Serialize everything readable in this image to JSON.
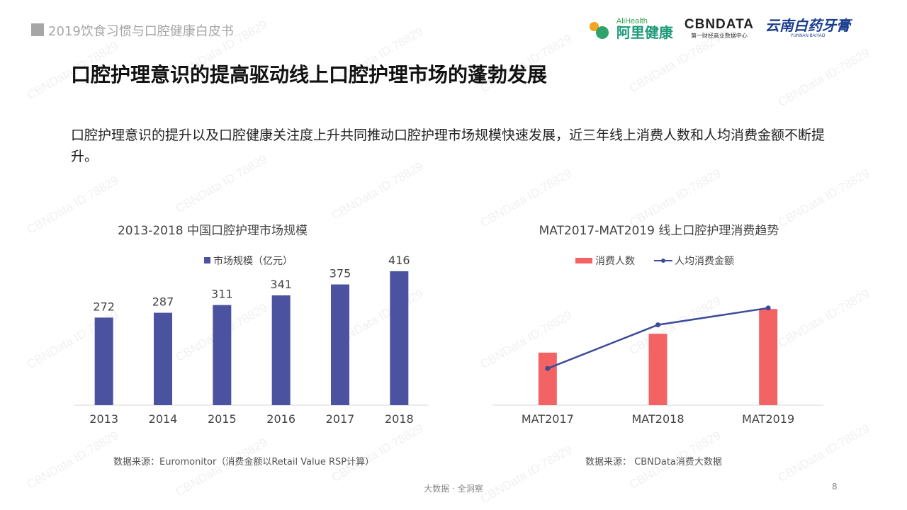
{
  "header": {
    "report_title": "2019饮食习惯与口腔健康白皮书"
  },
  "logos": {
    "alihealth_en": "AliHealth",
    "alihealth_cn": "阿里健康",
    "cbndata_en": "CBNDATA",
    "cbndata_cn": "第一财经商业数据中心",
    "yunnan_cn": "云南白药牙膏",
    "yunnan_en": "YUNNAN BAIYAO"
  },
  "main_title": "口腔护理意识的提高驱动线上口腔护理市场的蓬勃发展",
  "description": "口腔护理意识的提升以及口腔健康关注度上升共同推动口腔护理市场规模快速发展，近三年线上消费人数和人均消费金额不断提升。",
  "watermark_text": "CBNData ID:78829",
  "colors": {
    "bar_left": "#4b52a0",
    "bar_right": "#f46363",
    "line_right": "#3d4a9a"
  },
  "chart_data": [
    {
      "type": "bar",
      "title": "2013-2018 中国口腔护理市场规模",
      "categories": [
        "2013",
        "2014",
        "2015",
        "2016",
        "2017",
        "2018"
      ],
      "series": [
        {
          "name": "市场规模（亿元）",
          "values": [
            272,
            287,
            311,
            341,
            375,
            416
          ]
        }
      ],
      "ylim": [
        0,
        440
      ],
      "legend": "top-center",
      "grid": false
    },
    {
      "type": "bar+line",
      "title": "MAT2017-MAT2019 线上口腔护理消费趋势",
      "categories": [
        "MAT2017",
        "MAT2018",
        "MAT2019"
      ],
      "series": [
        {
          "name": "消费人数",
          "type": "bar",
          "values": [
            0.53,
            0.72,
            0.97
          ]
        },
        {
          "name": "人均消费金额",
          "type": "line",
          "values": [
            0.37,
            0.81,
            0.98
          ]
        }
      ],
      "ylim": [
        0,
        1.0
      ],
      "legend": "top-center",
      "grid": false
    }
  ],
  "sources": {
    "left": "数据来源：Euromonitor（消费金额以Retail Value RSP计算）",
    "right": "数据来源： CBNData消费大数据"
  },
  "footer": {
    "text": "大数据 · 全洞察",
    "page_number": "8"
  }
}
